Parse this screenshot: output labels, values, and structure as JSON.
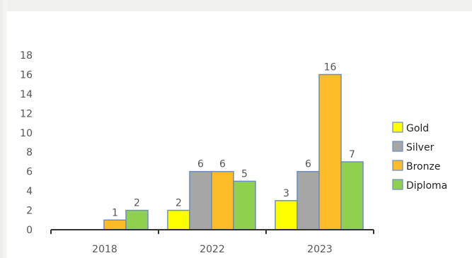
{
  "chart_data": {
    "type": "bar",
    "title": "",
    "xlabel": "",
    "ylabel": "",
    "ylim": [
      0,
      18
    ],
    "yticks": [
      0,
      2,
      4,
      6,
      8,
      10,
      12,
      14,
      16,
      18
    ],
    "grid": false,
    "legend_position": "right",
    "categories": [
      "2018",
      "2022",
      "2023"
    ],
    "series": [
      {
        "name": "Gold",
        "color": "#ffff00",
        "values": [
          0,
          2,
          3
        ]
      },
      {
        "name": "Silver",
        "color": "#a6a6a6",
        "values": [
          0,
          6,
          6
        ]
      },
      {
        "name": "Bronze",
        "color": "#fbbc28",
        "values": [
          1,
          6,
          16
        ]
      },
      {
        "name": "Diploma",
        "color": "#8fd14f",
        "values": [
          2,
          5,
          7
        ]
      }
    ]
  }
}
